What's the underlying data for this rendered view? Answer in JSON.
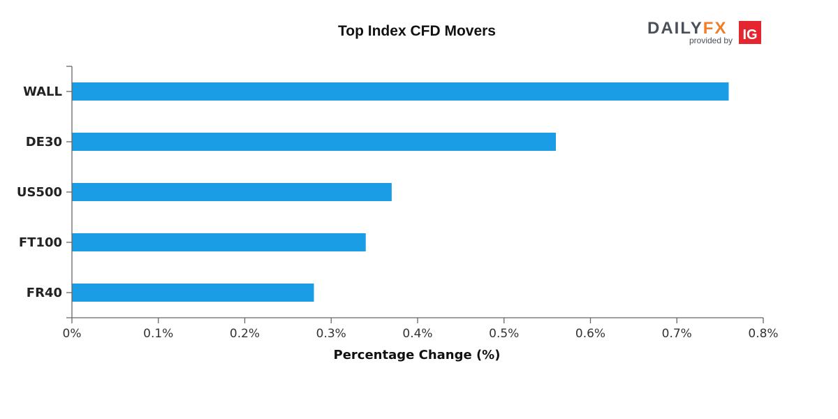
{
  "chart_data": {
    "type": "bar",
    "orientation": "horizontal",
    "title": "Top Index CFD Movers",
    "xlabel": "Percentage Change (%)",
    "ylabel": "",
    "categories": [
      "WALL",
      "DE30",
      "US500",
      "FT100",
      "FR40"
    ],
    "values": [
      0.76,
      0.56,
      0.37,
      0.34,
      0.28
    ],
    "xlim": [
      0,
      0.8
    ],
    "xticks": [
      0,
      0.1,
      0.2,
      0.3,
      0.4,
      0.5,
      0.6,
      0.7,
      0.8
    ],
    "xtick_labels": [
      "0%",
      "0.1%",
      "0.2%",
      "0.3%",
      "0.4%",
      "0.5%",
      "0.6%",
      "0.7%",
      "0.8%"
    ],
    "grid": false,
    "bar_color": "#1b9de6"
  },
  "logo": {
    "brand_dark": "DAILY",
    "brand_accent": "FX",
    "tagline": "provided by",
    "partner": "IG",
    "colors": {
      "dark": "#4a4f5a",
      "accent": "#f07d28",
      "partner_bg": "#e3262f"
    }
  }
}
